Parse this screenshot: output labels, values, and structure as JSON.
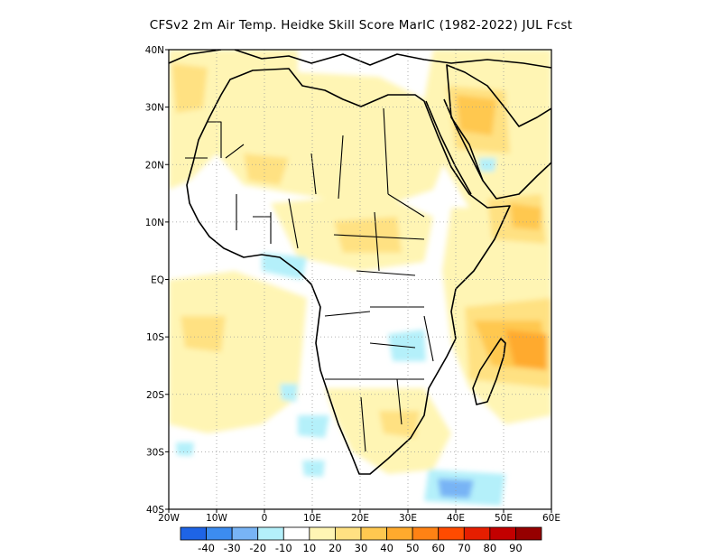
{
  "title": "CFSv2  2m Air Temp. Heidke Skill Score MarIC (1982-2022) JUL Fcst",
  "map": {
    "region": "Africa",
    "projection": "lat-lon",
    "lon_range": [
      -20,
      60
    ],
    "lat_range": [
      -40,
      40
    ],
    "grid_lines": "dotted",
    "x_ticks": [
      {
        "value": -20,
        "label": "20W"
      },
      {
        "value": -10,
        "label": "10W"
      },
      {
        "value": 0,
        "label": "0"
      },
      {
        "value": 10,
        "label": "10E"
      },
      {
        "value": 20,
        "label": "20E"
      },
      {
        "value": 30,
        "label": "30E"
      },
      {
        "value": 40,
        "label": "40E"
      },
      {
        "value": 50,
        "label": "50E"
      },
      {
        "value": 60,
        "label": "60E"
      }
    ],
    "y_ticks": [
      {
        "value": 40,
        "label": "40N"
      },
      {
        "value": 30,
        "label": "30N"
      },
      {
        "value": 20,
        "label": "20N"
      },
      {
        "value": 10,
        "label": "10N"
      },
      {
        "value": 0,
        "label": "EQ"
      },
      {
        "value": -10,
        "label": "10S"
      },
      {
        "value": -20,
        "label": "20S"
      },
      {
        "value": -30,
        "label": "30S"
      },
      {
        "value": -40,
        "label": "40S"
      }
    ]
  },
  "colorbar": {
    "colors": [
      "#1e64e6",
      "#3c8cf0",
      "#78b4f5",
      "#b4f0fa",
      "#ffffff",
      "#fff5b4",
      "#ffe182",
      "#ffc850",
      "#ffaa2d",
      "#ff8214",
      "#ff4b00",
      "#e61e00",
      "#c30000",
      "#960000"
    ],
    "labels": [
      "-40",
      "-30",
      "-20",
      "-10",
      "10",
      "20",
      "30",
      "40",
      "50",
      "60",
      "70",
      "80",
      "90"
    ]
  },
  "colors": {
    "white": "#ffffff",
    "pale_yellow": "#fff5b4",
    "light_yellow": "#ffe182",
    "yellow_orange": "#ffc850",
    "orange": "#ffaa2d",
    "dark_orange": "#ff8214",
    "light_cyan": "#b4f0fa",
    "light_blue": "#78b4f5",
    "coast": "#000000"
  }
}
